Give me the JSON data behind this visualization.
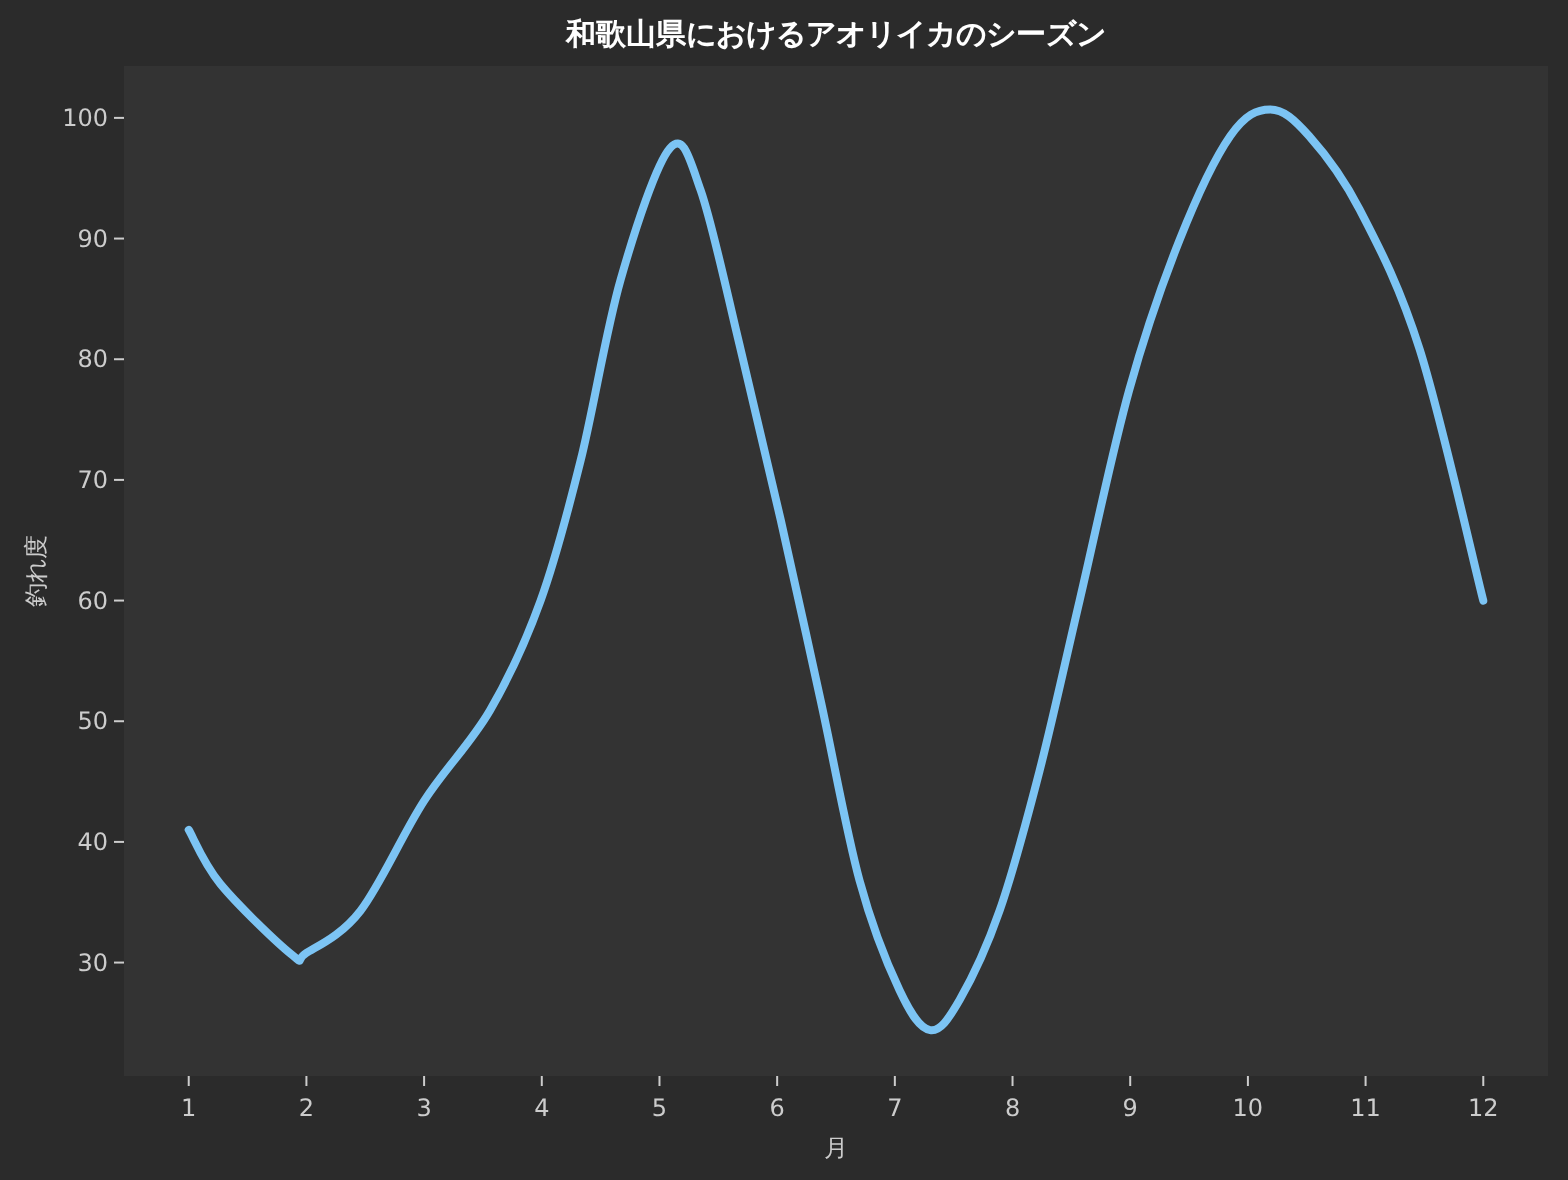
{
  "chart_data": {
    "type": "line",
    "title": "和歌山県におけるアオリイカのシーズン",
    "xlabel": "月",
    "ylabel": "釣れ度",
    "series": [
      {
        "color": "#7cc4f4",
        "x": [
          1.0,
          1.27,
          1.87,
          2.0,
          2.46,
          3.0,
          3.56,
          3.99,
          4.33,
          4.67,
          5.09,
          5.35,
          5.69,
          6.03,
          6.37,
          6.7,
          7.04,
          7.3,
          7.55,
          7.89,
          8.23,
          8.57,
          8.99,
          9.42,
          9.85,
          10.19,
          10.52,
          10.95,
          11.46,
          12.0
        ],
        "values": [
          41,
          36.5,
          30.7,
          30.8,
          34.3,
          43.4,
          50.9,
          60,
          71.6,
          86.6,
          97.5,
          94,
          80.8,
          66.7,
          51.7,
          36.8,
          27.7,
          24.4,
          26.9,
          34.3,
          45.9,
          60,
          77.4,
          89.9,
          98.5,
          100.7,
          98.5,
          92.4,
          80.8,
          60
        ]
      }
    ],
    "xlim": [
      0.45,
      12.55
    ],
    "ylim": [
      20.6,
      104.3
    ],
    "xticks": [
      1,
      2,
      3,
      4,
      5,
      6,
      7,
      8,
      9,
      10,
      11,
      12
    ],
    "yticks": [
      30,
      40,
      50,
      60,
      70,
      80,
      90,
      100
    ],
    "grid": false
  }
}
